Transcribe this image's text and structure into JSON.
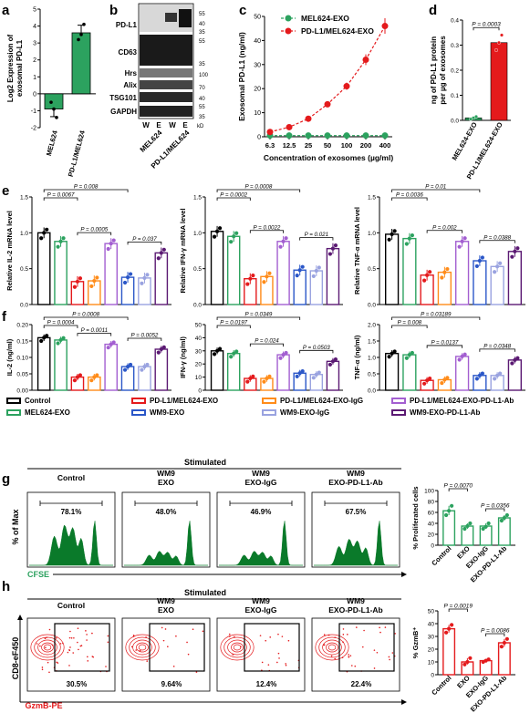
{
  "panel_letters": [
    "a",
    "b",
    "c",
    "d",
    "e",
    "f",
    "g",
    "h"
  ],
  "colors": {
    "black": "#000000",
    "green": "#2ca25f",
    "red": "#e41a1c",
    "blue": "#2b57c8",
    "orange": "#ff8c1a",
    "purple": "#a35fd1",
    "lightpurple": "#9aa3e0",
    "darkpurple": "#5b1a73",
    "facs_green": "#0a7a2a"
  },
  "panel_b": {
    "bands": [
      "PD-L1",
      "CD63",
      "Hrs",
      "Alix",
      "TSG101",
      "GAPDH"
    ],
    "markers": [
      "55",
      "40",
      "35",
      "55",
      "35",
      "100",
      "70",
      "40",
      "55",
      "35"
    ],
    "lanes": [
      "W",
      "E",
      "W",
      "E"
    ],
    "groups": [
      "MEL624",
      "PD-L1/MEL624"
    ],
    "kd": "kD"
  },
  "panel_d_ptext": "P = 0.0003",
  "panel_e_f_legend": [
    {
      "label": "Control",
      "color": "#000000"
    },
    {
      "label": "MEL624-EXO",
      "color": "#2ca25f"
    },
    {
      "label": "PD-L1/MEL624-EXO",
      "color": "#e41a1c"
    },
    {
      "label": "WM9-EXO",
      "color": "#2b57c8"
    },
    {
      "label": "PD-L1/MEL624-EXO-IgG",
      "color": "#ff8c1a"
    },
    {
      "label": "WM9-EXO-IgG",
      "color": "#9aa3e0"
    },
    {
      "label": "PD-L1/MEL624-EXO-PD-L1-Ab",
      "color": "#a35fd1"
    },
    {
      "label": "WM9-EXO-PD-L1-Ab",
      "color": "#5b1a73"
    }
  ],
  "panel_g": {
    "header": "Stimulated",
    "titles": [
      "Control",
      "WM9\nEXO",
      "WM9\nEXO-IgG",
      "WM9\nEXO-PD-L1-Ab"
    ],
    "percents": [
      "78.1%",
      "48.0%",
      "46.9%",
      "67.5%"
    ],
    "ylabel": "% of Max",
    "xlabel": "CFSE"
  },
  "panel_h": {
    "header": "Stimulated",
    "titles": [
      "Control",
      "WM9\nEXO",
      "WM9\nEXO-IgG",
      "WM9\nEXO-PD-L1-Ab"
    ],
    "percents": [
      "30.5%",
      "9.64%",
      "12.4%",
      "22.4%"
    ],
    "ylabel": "CD8-eF450",
    "xlabel": "GzmB-PE"
  },
  "chart_data": [
    {
      "id": "a",
      "type": "bar",
      "categories": [
        "MEL624",
        "PD-L1/MEL624"
      ],
      "values": [
        -0.9,
        3.6
      ],
      "points": [
        [
          -0.5,
          -0.9,
          -1.4
        ],
        [
          3.2,
          3.5,
          4.1
        ]
      ],
      "colors": [
        "#2ca25f",
        "#2ca25f"
      ],
      "ylabel": "Log2 Expression of\nexosomal PD-L1",
      "ylim": [
        -2,
        5
      ],
      "yticks": [
        -2,
        -1,
        0,
        1,
        2,
        3,
        4,
        5
      ]
    },
    {
      "id": "c",
      "type": "line",
      "x": [
        "6.3",
        "12.5",
        "25",
        "50",
        "100",
        "200",
        "400"
      ],
      "series": [
        {
          "name": "MEL624-EXO",
          "color": "#2ca25f",
          "values": [
            0.5,
            0.5,
            0.5,
            0.5,
            0.5,
            0.5,
            0.5
          ]
        },
        {
          "name": "PD-L1/MEL624-EXO",
          "color": "#e41a1c",
          "values": [
            2,
            4,
            7.5,
            13.5,
            21,
            32,
            46
          ]
        }
      ],
      "ylabel": "Exosomal PD-L1 (ng/ml)",
      "xlabel": "Concentration of exosomes (µg/ml)",
      "ylim": [
        0,
        50
      ],
      "yticks": [
        0,
        10,
        20,
        30,
        40,
        50
      ]
    },
    {
      "id": "d",
      "type": "bar",
      "categories": [
        "MEL624-EXO",
        "PD-L1/MEL624-EXO"
      ],
      "values": [
        0.01,
        0.31
      ],
      "points": [
        [
          0.005,
          0.01,
          0.015
        ],
        [
          0.28,
          0.31,
          0.34
        ]
      ],
      "colors": [
        "#2ca25f",
        "#e41a1c"
      ],
      "ylabel": "ng of PD-L1 protein\nper µg of exosomes",
      "ylim": [
        0,
        0.4
      ],
      "yticks": [
        0.0,
        0.1,
        0.2,
        0.3,
        0.4
      ]
    },
    {
      "id": "e1",
      "type": "bar",
      "categories": [
        "Control",
        "MEL624-EXO",
        "PD-L1/MEL624-EXO",
        "PD-L1/MEL624-EXO-IgG",
        "PD-L1/MEL624-EXO-PD-L1-Ab",
        "WM9-EXO",
        "WM9-EXO-IgG",
        "WM9-EXO-PD-L1-Ab"
      ],
      "values": [
        1.0,
        0.88,
        0.32,
        0.33,
        0.85,
        0.38,
        0.37,
        0.72
      ],
      "ylabel": "Relative IL-2 mRNA level",
      "ylim": [
        0,
        1.5
      ],
      "yticks": [
        0.0,
        0.5,
        1.0,
        1.5
      ],
      "pvals": [
        {
          "text": "P = 0.0067",
          "from": 0,
          "to": 2,
          "level": 1
        },
        {
          "text": "P = 0.008",
          "from": 0,
          "to": 5,
          "level": 2
        },
        {
          "text": "P = 0.0005",
          "from": 2,
          "to": 4,
          "level": 0
        },
        {
          "text": "P = 0.037",
          "from": 5,
          "to": 7,
          "level": 0
        }
      ]
    },
    {
      "id": "e2",
      "type": "bar",
      "categories": [
        "Control",
        "MEL624-EXO",
        "PD-L1/MEL624-EXO",
        "PD-L1/MEL624-EXO-IgG",
        "PD-L1/MEL624-EXO-PD-L1-Ab",
        "WM9-EXO",
        "WM9-EXO-IgG",
        "WM9-EXO-PD-L1-Ab"
      ],
      "values": [
        1.02,
        0.95,
        0.36,
        0.39,
        0.88,
        0.48,
        0.47,
        0.78
      ],
      "ylabel": "Relative IFN-γ mRNA level",
      "ylim": [
        0,
        1.5
      ],
      "yticks": [
        0.0,
        0.5,
        1.0,
        1.5
      ],
      "pvals": [
        {
          "text": "P = 0.0002",
          "from": 0,
          "to": 2,
          "level": 1
        },
        {
          "text": "P = 0.0008",
          "from": 0,
          "to": 5,
          "level": 2
        },
        {
          "text": "P = 0.0022",
          "from": 2,
          "to": 4,
          "level": 0
        },
        {
          "text": "P = 0.021",
          "from": 5,
          "to": 7,
          "level": 0
        }
      ]
    },
    {
      "id": "e3",
      "type": "bar",
      "categories": [
        "Control",
        "MEL624-EXO",
        "PD-L1/MEL624-EXO",
        "PD-L1/MEL624-EXO-IgG",
        "PD-L1/MEL624-EXO-PD-L1-Ab",
        "WM9-EXO",
        "WM9-EXO-IgG",
        "WM9-EXO-PD-L1-Ab"
      ],
      "values": [
        0.98,
        0.92,
        0.41,
        0.45,
        0.88,
        0.61,
        0.53,
        0.74
      ],
      "ylabel": "Relative TNF-α mRNA level",
      "ylim": [
        0,
        1.5
      ],
      "yticks": [
        0.0,
        0.5,
        1.0,
        1.5
      ],
      "pvals": [
        {
          "text": "P = 0.0036",
          "from": 0,
          "to": 2,
          "level": 1
        },
        {
          "text": "P = 0.01",
          "from": 0,
          "to": 5,
          "level": 2
        },
        {
          "text": "P = 0.002",
          "from": 2,
          "to": 4,
          "level": 0
        },
        {
          "text": "P = 0.0388",
          "from": 5,
          "to": 7,
          "level": 0
        }
      ]
    },
    {
      "id": "f1",
      "type": "bar",
      "categories": [
        "Control",
        "MEL624-EXO",
        "PD-L1/MEL624-EXO",
        "PD-L1/MEL624-EXO-IgG",
        "PD-L1/MEL624-EXO-PD-L1-Ab",
        "WM9-EXO",
        "WM9-EXO-IgG",
        "WM9-EXO-PD-L1-Ab"
      ],
      "values": [
        0.16,
        0.153,
        0.04,
        0.04,
        0.14,
        0.072,
        0.072,
        0.125
      ],
      "ylabel": "IL-2 (ng/ml)",
      "ylim": [
        0,
        0.2
      ],
      "yticks": [
        0.0,
        0.05,
        0.1,
        0.15,
        0.2
      ],
      "pvals": [
        {
          "text": "P = 0.0004",
          "from": 0,
          "to": 2,
          "level": 1
        },
        {
          "text": "P = 0.0008",
          "from": 0,
          "to": 5,
          "level": 2
        },
        {
          "text": "P = 0.0011",
          "from": 2,
          "to": 4,
          "level": 0
        },
        {
          "text": "P = 0.0052",
          "from": 5,
          "to": 7,
          "level": 0
        }
      ]
    },
    {
      "id": "f2",
      "type": "bar",
      "categories": [
        "Control",
        "MEL624-EXO",
        "PD-L1/MEL624-EXO",
        "PD-L1/MEL624-EXO-IgG",
        "PD-L1/MEL624-EXO-PD-L1-Ab",
        "WM9-EXO",
        "WM9-EXO-IgG",
        "WM9-EXO-PD-L1-Ab"
      ],
      "values": [
        30,
        28,
        9,
        9,
        27,
        13,
        12,
        22
      ],
      "ylabel": "IFN-γ (ng/ml)",
      "ylim": [
        0,
        50
      ],
      "yticks": [
        0,
        10,
        20,
        30,
        40,
        50
      ],
      "pvals": [
        {
          "text": "P = 0.0197",
          "from": 0,
          "to": 2,
          "level": 1
        },
        {
          "text": "P = 0.0349",
          "from": 0,
          "to": 5,
          "level": 2
        },
        {
          "text": "P = 0.024",
          "from": 2,
          "to": 4,
          "level": 0
        },
        {
          "text": "P = 0.0503",
          "from": 5,
          "to": 7,
          "level": 0
        }
      ]
    },
    {
      "id": "f3",
      "type": "bar",
      "categories": [
        "Control",
        "MEL624-EXO",
        "PD-L1/MEL624-EXO",
        "PD-L1/MEL624-EXO-IgG",
        "PD-L1/MEL624-EXO-PD-L1-Ab",
        "WM9-EXO",
        "WM9-EXO-IgG",
        "WM9-EXO-PD-L1-Ab"
      ],
      "values": [
        1.12,
        1.08,
        0.3,
        0.32,
        1.03,
        0.45,
        0.45,
        0.92
      ],
      "ylabel": "TNF-α (ng/ml)",
      "ylim": [
        0,
        2.0
      ],
      "yticks": [
        0.0,
        0.5,
        1.0,
        1.5,
        2.0
      ],
      "pvals": [
        {
          "text": "P = 0.008",
          "from": 0,
          "to": 2,
          "level": 1
        },
        {
          "text": "P = 0.03189",
          "from": 0,
          "to": 5,
          "level": 2
        },
        {
          "text": "P = 0.0137",
          "from": 2,
          "to": 4,
          "level": 0
        },
        {
          "text": "P = 0.0348",
          "from": 5,
          "to": 7,
          "level": 0
        }
      ]
    },
    {
      "id": "g",
      "type": "bar",
      "categories": [
        "Control",
        "EXO",
        "EXO-IgG",
        "EXO-PD-L1-Ab"
      ],
      "values": [
        63,
        35,
        35,
        50
      ],
      "points": [
        [
          55,
          63,
          72
        ],
        [
          30,
          35,
          40
        ],
        [
          30,
          34,
          40
        ],
        [
          45,
          50,
          55
        ]
      ],
      "colors": [
        "#2ca25f",
        "#2ca25f",
        "#2ca25f",
        "#2ca25f"
      ],
      "ylabel": "% Proliferated cells",
      "ylim": [
        0,
        100
      ],
      "yticks": [
        0,
        20,
        40,
        60,
        80,
        100
      ],
      "pvals": [
        {
          "text": "P = 0.0070",
          "from": 0,
          "to": 1,
          "level": 1
        },
        {
          "text": "P = 0.0356",
          "from": 2,
          "to": 3,
          "level": 0
        }
      ]
    },
    {
      "id": "h",
      "type": "bar",
      "categories": [
        "Control",
        "EXO",
        "EXO-IgG",
        "EXO-PD-L1-Ab"
      ],
      "values": [
        36,
        10,
        11,
        25
      ],
      "points": [
        [
          33,
          36,
          39
        ],
        [
          8,
          10,
          13
        ],
        [
          10,
          11,
          12
        ],
        [
          22,
          25,
          28
        ]
      ],
      "colors": [
        "#e41a1c",
        "#e41a1c",
        "#e41a1c",
        "#e41a1c"
      ],
      "ylabel": "% GzmB⁺",
      "ylim": [
        0,
        50
      ],
      "yticks": [
        0,
        10,
        20,
        30,
        40,
        50
      ],
      "pvals": [
        {
          "text": "P = 0.0019",
          "from": 0,
          "to": 1,
          "level": 1
        },
        {
          "text": "P = 0.0086",
          "from": 2,
          "to": 3,
          "level": 0
        }
      ]
    }
  ]
}
